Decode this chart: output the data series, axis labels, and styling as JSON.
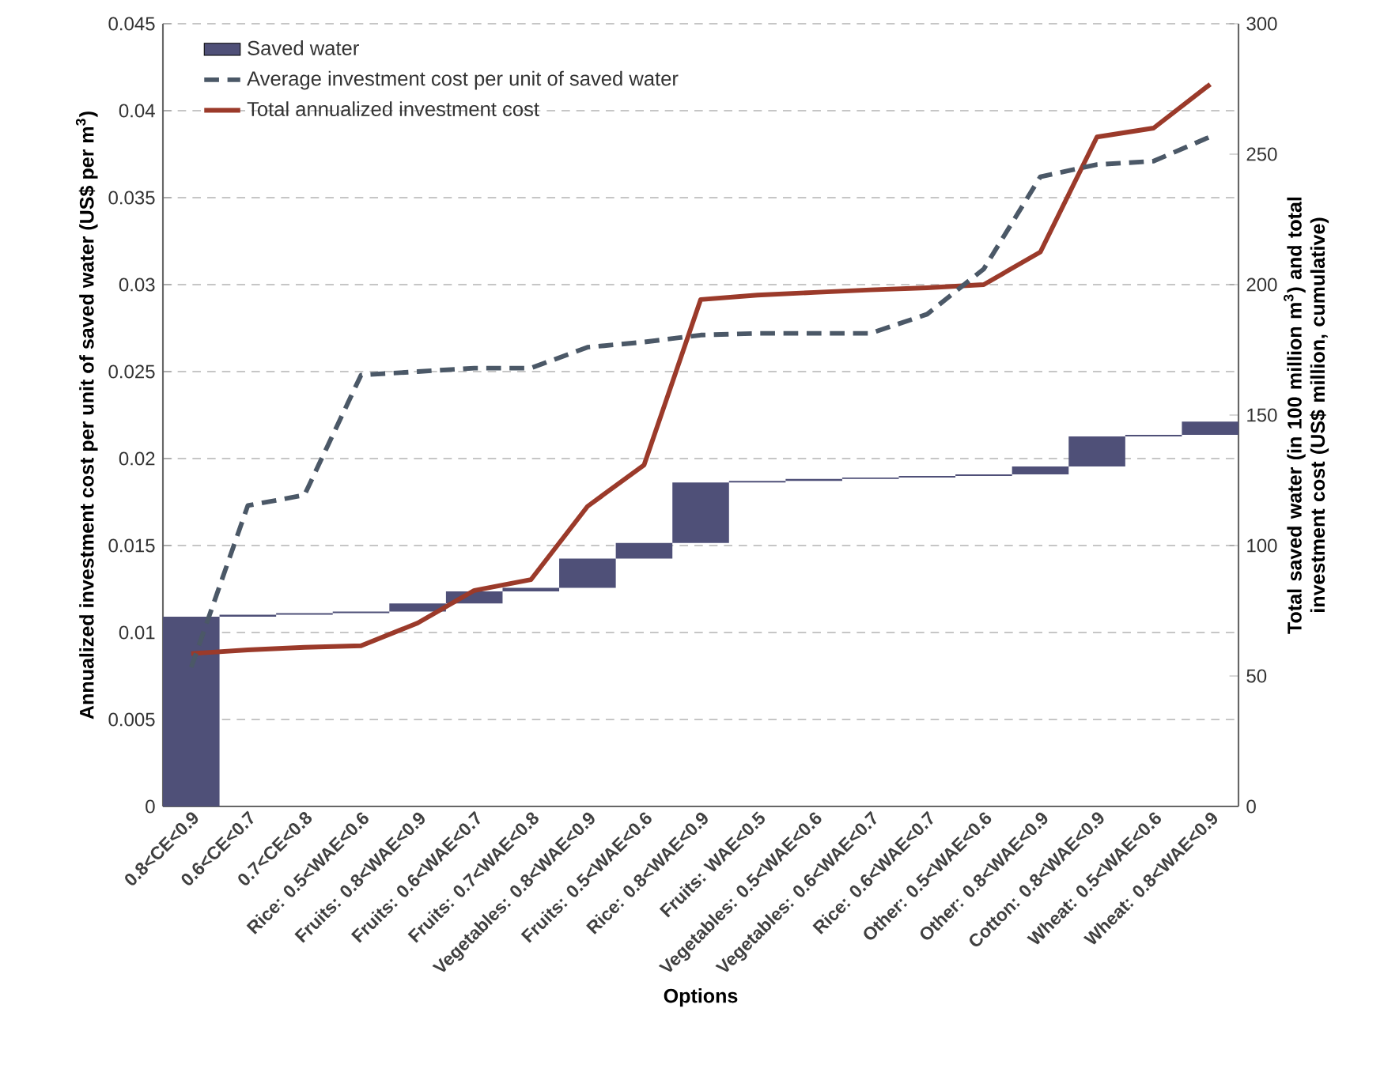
{
  "chart_data": {
    "type": "bar",
    "xlabel": "Options",
    "ylabel": "Annualized investment cost per unit of saved water (US$ per m$^{3}$)",
    "y2label": "Total saved water (in 100  million m$^{3}$) and total investment cost (US$ million, cumulative)",
    "categories": [
      "0.8<CE<0.9",
      "0.6<CE<0.7",
      "0.7<CE<0.8",
      "Rice: 0.5<WAE<0.6",
      "Fruits: 0.8<WAE<0.9",
      "Fruits: 0.6<WAE<0.7",
      "Fruits: 0.7<WAE<0.8",
      "Vegetables: 0.8<WAE<0.9",
      "Fruits: 0.5<WAE<0.6",
      "Rice: 0.8<WAE<0.9",
      "Fruits: WAE<0.5",
      "Vegetables: 0.5<WAE<0.6",
      "Vegetables: 0.6<WAE<0.7",
      "Rice: 0.6<WAE<0.7",
      "Other: 0.5<WAE<0.6",
      "Other: 0.8<WAE<0.9",
      "Cotton: 0.8<WAE<0.9",
      "Wheat: 0.5<WAE<0.6",
      "Wheat: 0.8<WAE<0.9"
    ],
    "series": [
      {
        "name": "Saved water",
        "axis": "y2",
        "color": "#4f5078",
        "base": [
          0,
          72.7,
          73.5,
          74.1,
          74.7,
          77.8,
          82.4,
          83.8,
          95.0,
          101.0,
          124.2,
          124.8,
          125.5,
          126.1,
          126.7,
          127.3,
          130.3,
          141.8,
          142.4
        ],
        "values": [
          72.7,
          0.8,
          0.6,
          0.6,
          3.1,
          4.6,
          1.4,
          11.2,
          6.0,
          23.2,
          0.6,
          0.7,
          0.6,
          0.6,
          0.6,
          3.0,
          11.5,
          0.6,
          5.1
        ]
      },
      {
        "name": "Average investment cost per unit of saved water",
        "type": "line",
        "axis": "y",
        "color": "#4b5867",
        "line_style": "dashed",
        "values": [
          0.008,
          0.0173,
          0.0179,
          0.0248,
          0.025,
          0.0252,
          0.0252,
          0.0264,
          0.0267,
          0.0271,
          0.0272,
          0.0272,
          0.0272,
          0.0283,
          0.0309,
          0.0362,
          0.0369,
          0.0371,
          0.0385
        ]
      },
      {
        "name": "Total annualized investment cost",
        "type": "line",
        "axis": "y2",
        "color": "#9b3a2a",
        "line_style": "solid",
        "values": [
          58.6,
          60.0,
          61.0,
          61.6,
          70.3,
          82.8,
          86.9,
          115.0,
          130.9,
          194.3,
          196.0,
          197.0,
          198.0,
          198.8,
          200.0,
          212.5,
          256.6,
          260.0,
          276.8
        ]
      }
    ],
    "ylim": [
      0,
      0.045
    ],
    "yticks": [
      0,
      0.005,
      0.01,
      0.015,
      0.02,
      0.025,
      0.03,
      0.035,
      0.04,
      0.045
    ],
    "y2lim": [
      0,
      300
    ],
    "y2ticks": [
      0,
      50,
      100,
      150,
      200,
      250,
      300
    ],
    "grid": "y",
    "legend": "top left"
  }
}
